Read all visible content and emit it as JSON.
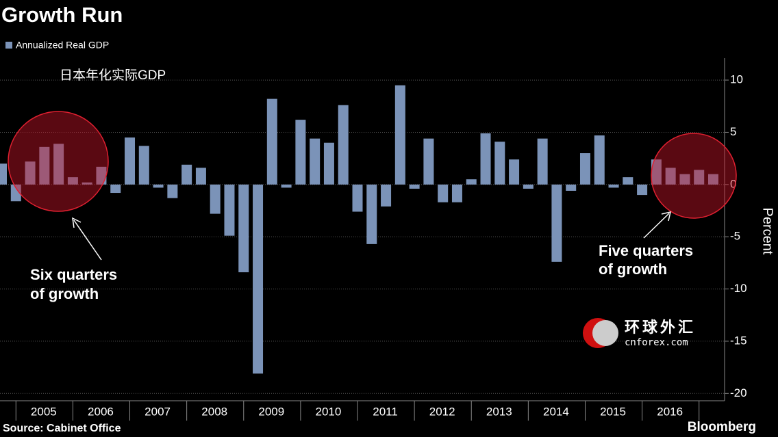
{
  "chart_data": {
    "type": "bar",
    "title": "Growth Run",
    "legend": "Annualized Real GDP",
    "subtitle": "日本年化实际GDP",
    "ylabel": "Percent",
    "source": "Source: Cabinet Office",
    "brand": "Bloomberg",
    "watermark": [
      "环球外汇",
      "cnforex.com"
    ],
    "annotations": [
      "Six quarters",
      "of growth",
      "Five quarters",
      "of growth"
    ],
    "color": "#7b93b8",
    "categories": [
      null,
      null,
      null,
      "2005",
      null,
      null,
      null,
      "2006",
      null,
      null,
      null,
      "2007",
      null,
      null,
      null,
      "2008",
      null,
      null,
      null,
      "2009",
      null,
      null,
      null,
      "2010",
      null,
      null,
      null,
      "2011",
      null,
      null,
      null,
      "2012",
      null,
      null,
      null,
      "2013",
      null,
      null,
      null,
      "2014",
      null,
      null,
      null,
      "2015",
      null,
      null,
      null,
      "2016",
      null,
      null,
      null
    ],
    "values": [
      2.0,
      -1.6,
      2.2,
      3.6,
      3.9,
      0.7,
      0.2,
      1.7,
      -0.8,
      4.5,
      3.7,
      -0.3,
      -1.3,
      1.9,
      1.6,
      -2.8,
      -4.9,
      -8.4,
      -18.1,
      8.2,
      -0.3,
      6.2,
      4.4,
      4.0,
      7.6,
      -2.6,
      -5.7,
      -2.1,
      9.5,
      -0.4,
      4.4,
      -1.7,
      -1.7,
      0.5,
      4.9,
      4.1,
      2.4,
      -0.4,
      4.4,
      -7.4,
      -0.6,
      3.0,
      4.7,
      -0.3,
      0.7,
      -1.0,
      2.4,
      1.6,
      1.0,
      1.4,
      1.0
    ],
    "ylim": [
      -20.7,
      12.1
    ],
    "yticks": [
      10,
      5,
      0,
      -5,
      -10,
      -15,
      -20
    ],
    "grid": true
  }
}
